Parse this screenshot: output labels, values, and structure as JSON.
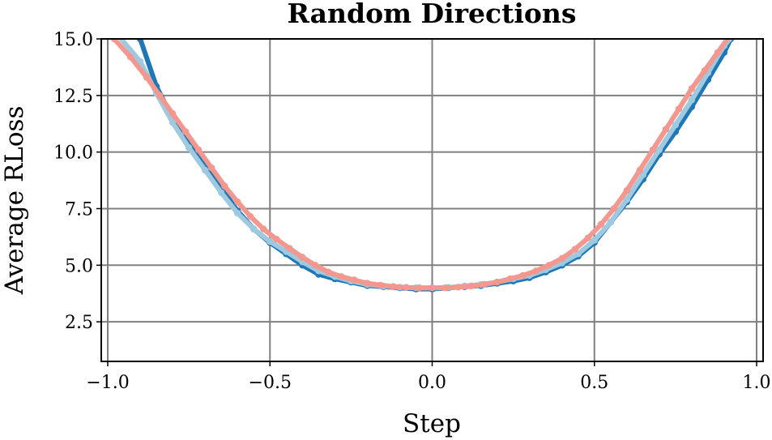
{
  "chart_data": {
    "type": "line",
    "title": "Random Directions",
    "xlabel": "Step",
    "ylabel": "Average RLoss",
    "xlim": [
      -1.02,
      1.02
    ],
    "ylim": [
      0.75,
      15.0
    ],
    "xticks": [
      -1.0,
      -0.5,
      0.0,
      0.5,
      1.0
    ],
    "xtick_labels": [
      "−1.0",
      "−0.5",
      "0.0",
      "0.5",
      "1.0"
    ],
    "yticks": [
      2.5,
      5.0,
      7.5,
      10.0,
      12.5,
      15.0
    ],
    "ytick_labels": [
      "2.5",
      "5.0",
      "7.5",
      "10.0",
      "12.5",
      "15.0"
    ],
    "grid": true,
    "series": [
      {
        "color": "#1f77b4",
        "x": [
          -0.98,
          -0.9,
          -0.85,
          -0.8,
          -0.75,
          -0.7,
          -0.65,
          -0.6,
          -0.55,
          -0.5,
          -0.45,
          -0.4,
          -0.35,
          -0.3,
          -0.25,
          -0.2,
          -0.15,
          -0.1,
          -0.05,
          0.0,
          0.05,
          0.1,
          0.15,
          0.2,
          0.25,
          0.3,
          0.35,
          0.4,
          0.45,
          0.5,
          0.55,
          0.6,
          0.65,
          0.7,
          0.75,
          0.8,
          0.85,
          0.9,
          0.92
        ],
        "y": [
          17.8,
          15.0,
          12.9,
          11.5,
          10.4,
          9.4,
          8.4,
          7.4,
          6.6,
          6.0,
          5.5,
          5.0,
          4.6,
          4.4,
          4.25,
          4.1,
          4.05,
          4.0,
          3.95,
          3.95,
          4.0,
          4.05,
          4.1,
          4.2,
          4.3,
          4.45,
          4.7,
          5.0,
          5.4,
          6.0,
          6.9,
          7.8,
          8.8,
          9.9,
          10.9,
          12.0,
          13.2,
          14.4,
          15.0
        ]
      },
      {
        "color": "#9ecae1",
        "x": [
          -0.97,
          -0.9,
          -0.85,
          -0.8,
          -0.75,
          -0.7,
          -0.65,
          -0.6,
          -0.55,
          -0.5,
          -0.45,
          -0.4,
          -0.35,
          -0.3,
          -0.25,
          -0.2,
          -0.15,
          -0.1,
          -0.05,
          0.0,
          0.05,
          0.1,
          0.15,
          0.2,
          0.25,
          0.3,
          0.35,
          0.4,
          0.45,
          0.5,
          0.55,
          0.6,
          0.65,
          0.7,
          0.75,
          0.8,
          0.85,
          0.9,
          0.93
        ],
        "y": [
          15.2,
          14.0,
          12.6,
          11.3,
          10.2,
          9.2,
          8.2,
          7.3,
          6.6,
          6.05,
          5.6,
          5.15,
          4.75,
          4.5,
          4.3,
          4.15,
          4.08,
          4.03,
          4.0,
          4.0,
          4.02,
          4.08,
          4.15,
          4.25,
          4.4,
          4.55,
          4.8,
          5.1,
          5.5,
          6.1,
          6.9,
          7.9,
          9.0,
          10.1,
          11.2,
          12.3,
          13.5,
          14.7,
          15.2
        ]
      },
      {
        "color": "#f4978e",
        "x": [
          -0.98,
          -0.93,
          -0.88,
          -0.84,
          -0.8,
          -0.76,
          -0.72,
          -0.68,
          -0.64,
          -0.6,
          -0.56,
          -0.52,
          -0.48,
          -0.44,
          -0.4,
          -0.36,
          -0.32,
          -0.28,
          -0.24,
          -0.2,
          -0.16,
          -0.12,
          -0.08,
          -0.04,
          0.0,
          0.04,
          0.08,
          0.12,
          0.16,
          0.2,
          0.24,
          0.28,
          0.32,
          0.36,
          0.4,
          0.44,
          0.48,
          0.52,
          0.56,
          0.6,
          0.64,
          0.68,
          0.72,
          0.76,
          0.8,
          0.84,
          0.88,
          0.92
        ],
        "y": [
          15.0,
          14.2,
          13.3,
          12.5,
          11.7,
          10.9,
          10.1,
          9.3,
          8.5,
          7.8,
          7.15,
          6.6,
          6.15,
          5.75,
          5.35,
          5.0,
          4.7,
          4.5,
          4.35,
          4.2,
          4.12,
          4.06,
          4.02,
          4.0,
          4.0,
          4.0,
          4.03,
          4.08,
          4.15,
          4.25,
          4.4,
          4.55,
          4.75,
          5.0,
          5.3,
          5.7,
          6.2,
          6.8,
          7.5,
          8.3,
          9.2,
          10.1,
          11.0,
          11.9,
          12.8,
          13.6,
          14.4,
          15.2
        ]
      }
    ]
  }
}
